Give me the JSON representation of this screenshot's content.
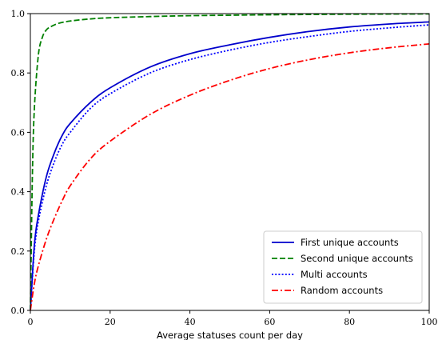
{
  "chart_data": {
    "type": "line",
    "title": "",
    "xlabel": "Average statuses count per day",
    "ylabel": "",
    "xlim": [
      0,
      100
    ],
    "ylim": [
      0,
      1.0
    ],
    "xticks": [
      "0",
      "20",
      "40",
      "60",
      "80",
      "100"
    ],
    "yticks": [
      "0.0",
      "0.2",
      "0.4",
      "0.6",
      "0.8",
      "1.0"
    ],
    "grid": false,
    "legend": "bottom-right",
    "series": [
      {
        "name": "First unique accounts",
        "color": "#0000cc",
        "style": "solid",
        "x": [
          0,
          1,
          2,
          4,
          6,
          8,
          10,
          15,
          20,
          30,
          40,
          50,
          60,
          70,
          80,
          90,
          100
        ],
        "y": [
          0.0,
          0.22,
          0.32,
          0.45,
          0.53,
          0.59,
          0.63,
          0.7,
          0.75,
          0.82,
          0.865,
          0.895,
          0.92,
          0.94,
          0.955,
          0.965,
          0.972
        ]
      },
      {
        "name": "Second unique accounts",
        "color": "#008000",
        "style": "dashed",
        "x": [
          0,
          0.5,
          1,
          2,
          3,
          4,
          5,
          7,
          10,
          15,
          20,
          30,
          40,
          60,
          80,
          100
        ],
        "y": [
          0.0,
          0.45,
          0.68,
          0.86,
          0.92,
          0.945,
          0.955,
          0.967,
          0.975,
          0.982,
          0.986,
          0.99,
          0.993,
          0.996,
          0.998,
          0.999
        ]
      },
      {
        "name": "Multi accounts",
        "color": "#0000ff",
        "style": "dotted",
        "x": [
          0,
          1,
          2,
          4,
          6,
          8,
          10,
          15,
          20,
          30,
          40,
          50,
          60,
          70,
          80,
          90,
          100
        ],
        "y": [
          0.0,
          0.2,
          0.3,
          0.42,
          0.5,
          0.56,
          0.6,
          0.68,
          0.73,
          0.8,
          0.845,
          0.877,
          0.903,
          0.923,
          0.94,
          0.952,
          0.962
        ]
      },
      {
        "name": "Random accounts",
        "color": "#ff0000",
        "style": "dashdot",
        "x": [
          0,
          1,
          2,
          4,
          6,
          8,
          10,
          15,
          20,
          30,
          40,
          50,
          60,
          70,
          80,
          90,
          100
        ],
        "y": [
          0.0,
          0.09,
          0.15,
          0.24,
          0.31,
          0.37,
          0.42,
          0.51,
          0.57,
          0.66,
          0.725,
          0.775,
          0.815,
          0.845,
          0.868,
          0.885,
          0.898
        ]
      }
    ]
  }
}
